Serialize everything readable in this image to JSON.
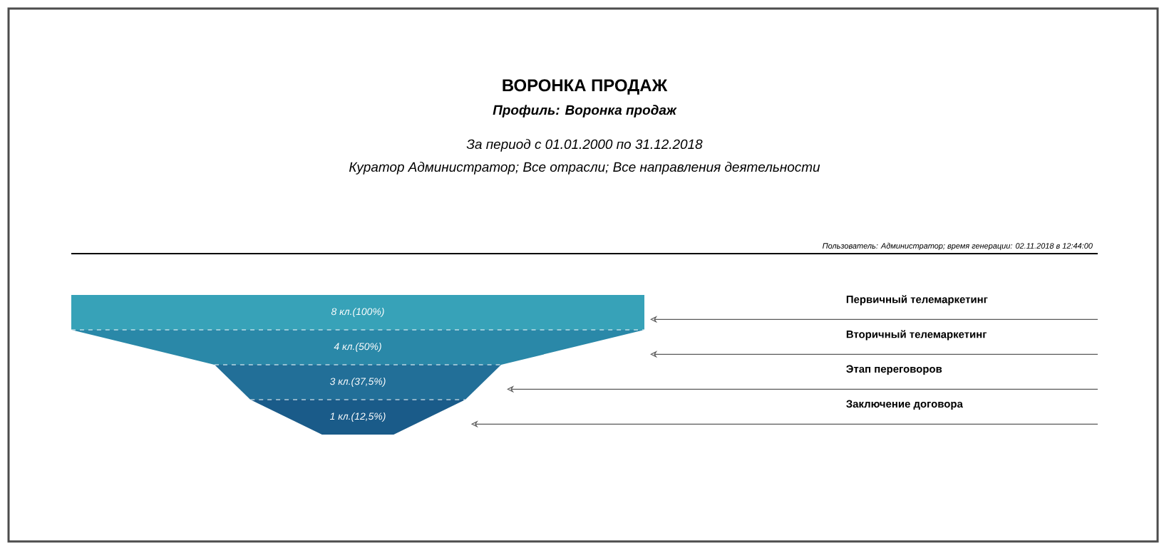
{
  "chart_data": {
    "type": "other",
    "title": "ВОРОНКА ПРОДАЖ",
    "subtitle": "Профиль: Воронка продаж",
    "annotations": [
      "За период с 01.01.2000 по 31.12.2018",
      "Куратор Администратор; Все отрасли; Все направления деятельности",
      "Пользователь: Администратор; время генерации: 02.11.2018 в 12:44:00"
    ],
    "categories": [
      "Первичный телемаркетинг",
      "Вторичный телемаркетинг",
      "Этап переговоров",
      "Заключение договора"
    ],
    "values": [
      8,
      4,
      3,
      1
    ],
    "value_labels": [
      "8 кл.(100%)",
      "4 кл.(50%)",
      "3 кл.(37,5%)",
      "1 кл.(12,5%)"
    ],
    "colors": [
      "#37a2b8",
      "#2a88a8",
      "#226f98",
      "#1a5b89"
    ]
  }
}
